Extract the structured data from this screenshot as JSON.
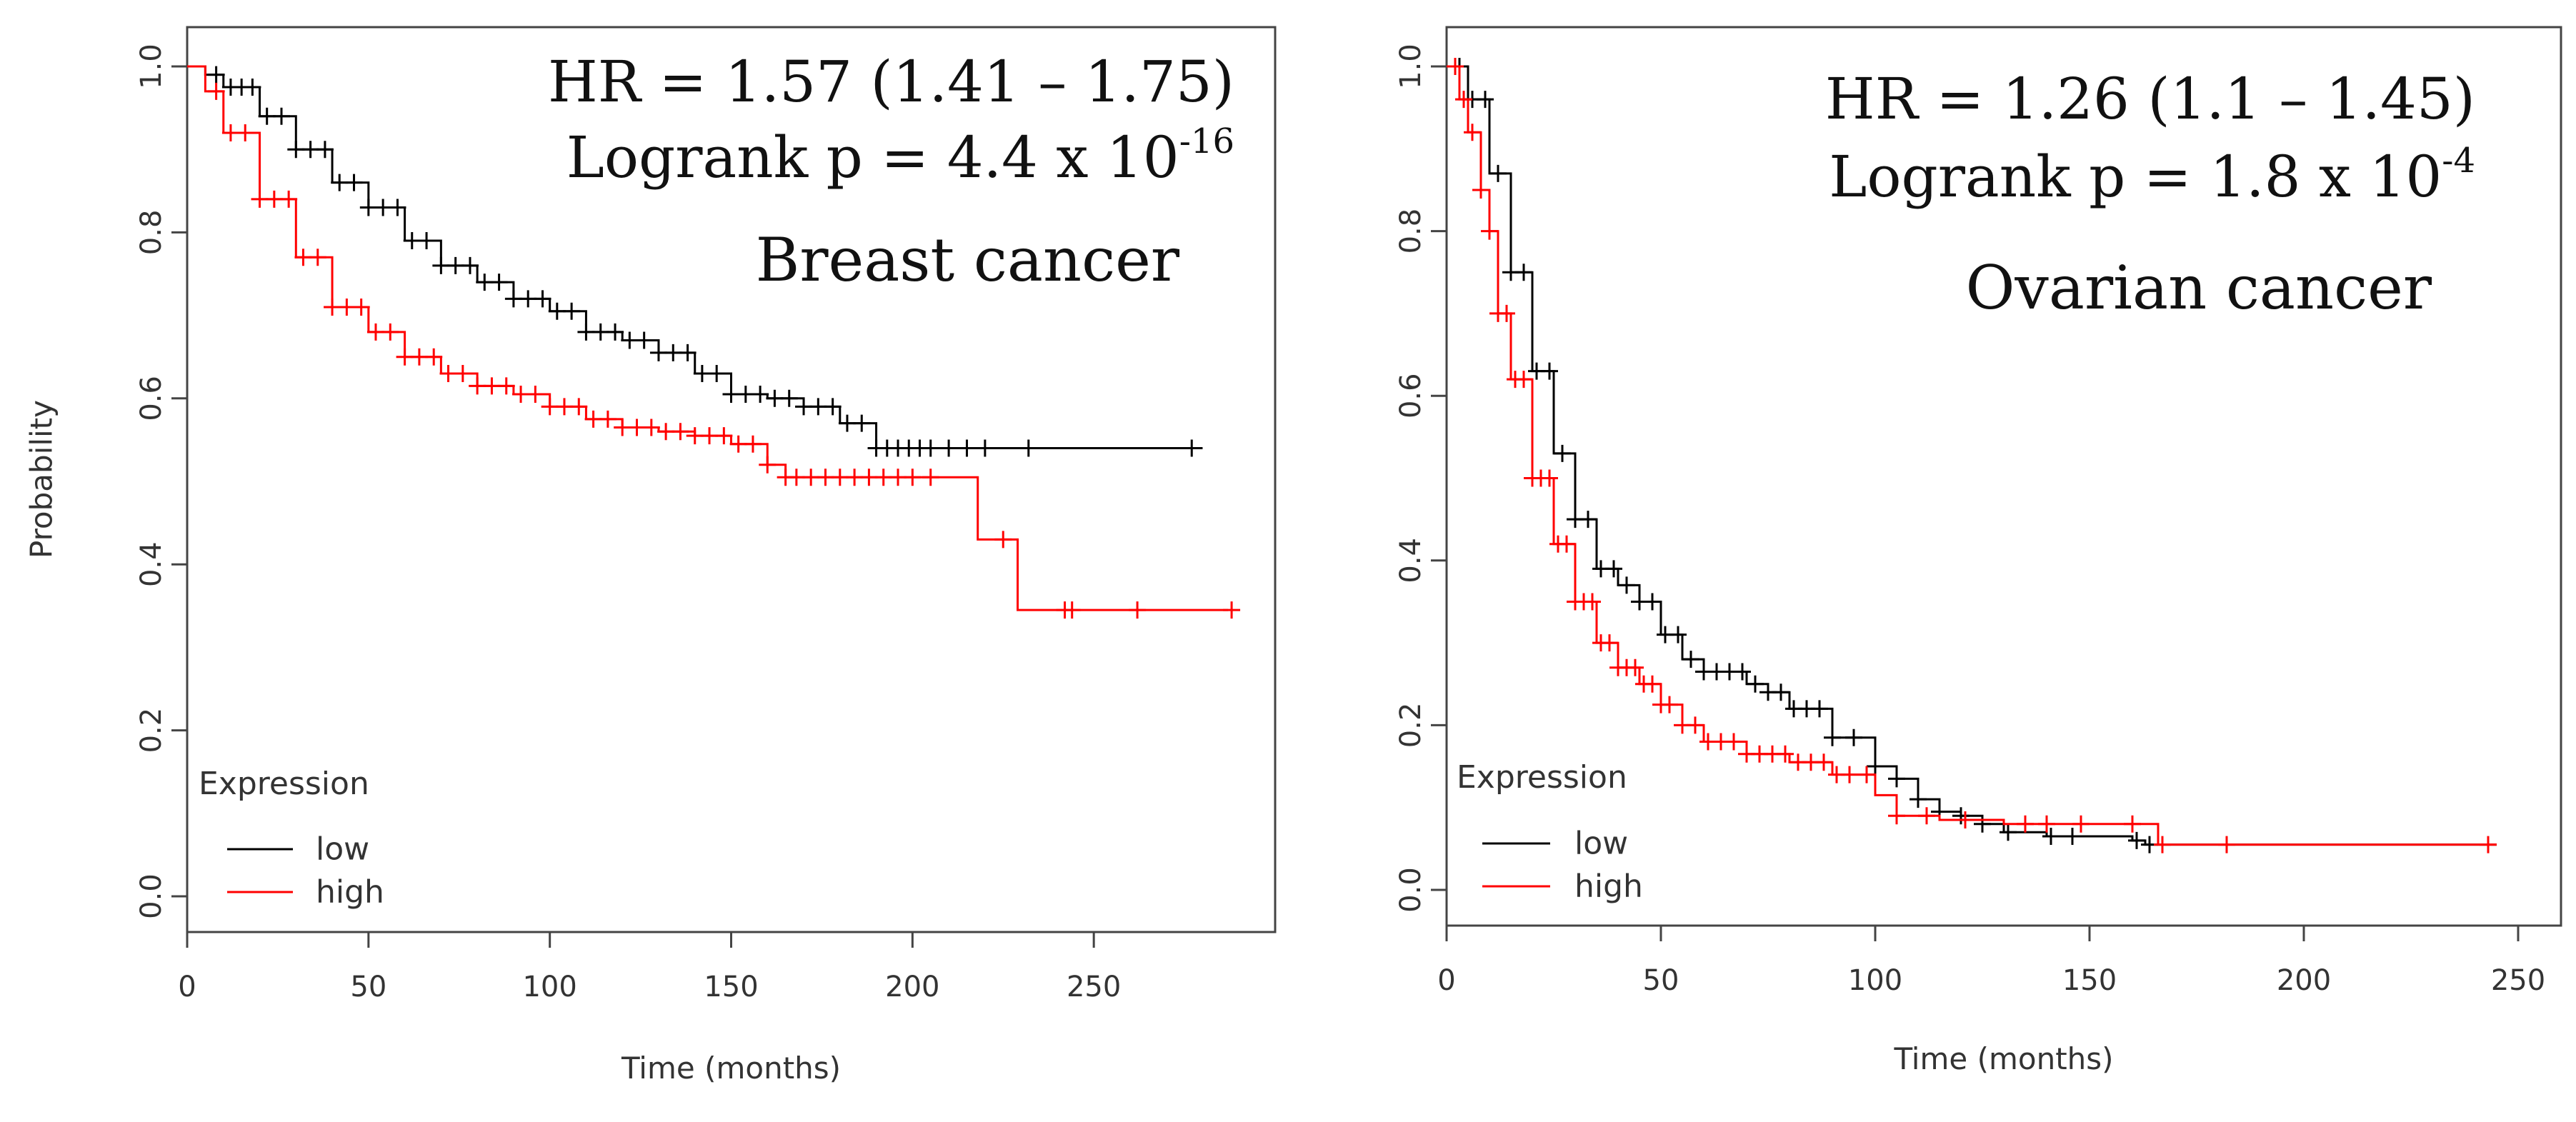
{
  "chart_data": [
    {
      "type": "line",
      "subtype": "kaplan-meier",
      "title": "Breast cancer",
      "xlabel": "Time (months)",
      "ylabel": "Probability",
      "xlim": [
        0,
        300
      ],
      "ylim": [
        0,
        1
      ],
      "x_ticks": [
        "0",
        "50",
        "100",
        "150",
        "200",
        "250"
      ],
      "y_ticks": [
        "0.0",
        "0.2",
        "0.4",
        "0.6",
        "0.8",
        "1.0"
      ],
      "annotation": {
        "hr": "HR = 1.57 (1.41 – 1.75)",
        "logrank_prefix": "Logrank p = 4.4 x 10",
        "logrank_exponent": "-16",
        "label": "Breast cancer"
      },
      "legend": {
        "title": "Expression",
        "position": "bottom-left",
        "entries": [
          {
            "label": "low",
            "color": "#000000"
          },
          {
            "label": "high",
            "color": "#ff0000"
          }
        ]
      },
      "series": [
        {
          "name": "low",
          "color": "#000000",
          "points": [
            [
              0,
              1.0
            ],
            [
              5,
              0.99
            ],
            [
              10,
              0.975
            ],
            [
              20,
              0.94
            ],
            [
              30,
              0.9
            ],
            [
              40,
              0.86
            ],
            [
              50,
              0.83
            ],
            [
              60,
              0.79
            ],
            [
              70,
              0.76
            ],
            [
              80,
              0.74
            ],
            [
              90,
              0.72
            ],
            [
              100,
              0.705
            ],
            [
              110,
              0.68
            ],
            [
              120,
              0.67
            ],
            [
              130,
              0.655
            ],
            [
              140,
              0.63
            ],
            [
              150,
              0.605
            ],
            [
              160,
              0.6
            ],
            [
              170,
              0.59
            ],
            [
              180,
              0.57
            ],
            [
              190,
              0.54
            ],
            [
              200,
              0.54
            ],
            [
              230,
              0.54
            ],
            [
              280,
              0.54
            ]
          ],
          "censor_x": [
            8,
            12,
            15,
            18,
            22,
            26,
            30,
            34,
            38,
            42,
            46,
            50,
            54,
            58,
            62,
            66,
            70,
            74,
            78,
            82,
            86,
            90,
            94,
            98,
            102,
            106,
            110,
            114,
            118,
            122,
            126,
            130,
            134,
            138,
            142,
            146,
            150,
            154,
            158,
            162,
            166,
            170,
            174,
            178,
            182,
            186,
            190,
            193,
            196,
            199,
            202,
            205,
            210,
            215,
            220,
            232,
            277
          ]
        },
        {
          "name": "high",
          "color": "#ff0000",
          "points": [
            [
              0,
              1.0
            ],
            [
              5,
              0.97
            ],
            [
              10,
              0.92
            ],
            [
              20,
              0.84
            ],
            [
              30,
              0.77
            ],
            [
              40,
              0.71
            ],
            [
              50,
              0.68
            ],
            [
              60,
              0.65
            ],
            [
              70,
              0.63
            ],
            [
              80,
              0.615
            ],
            [
              90,
              0.605
            ],
            [
              100,
              0.59
            ],
            [
              110,
              0.575
            ],
            [
              120,
              0.565
            ],
            [
              130,
              0.56
            ],
            [
              140,
              0.555
            ],
            [
              150,
              0.545
            ],
            [
              160,
              0.52
            ],
            [
              165,
              0.505
            ],
            [
              200,
              0.505
            ],
            [
              218,
              0.505
            ],
            [
              218,
              0.43
            ],
            [
              229,
              0.43
            ],
            [
              229,
              0.345
            ],
            [
              287,
              0.345
            ]
          ],
          "censor_x": [
            8,
            12,
            16,
            20,
            24,
            28,
            32,
            36,
            40,
            44,
            48,
            52,
            56,
            60,
            64,
            68,
            72,
            76,
            80,
            84,
            88,
            92,
            96,
            100,
            104,
            108,
            112,
            116,
            120,
            124,
            128,
            132,
            136,
            140,
            144,
            148,
            152,
            156,
            160,
            165,
            168,
            172,
            176,
            180,
            184,
            188,
            192,
            196,
            200,
            205,
            225,
            242,
            244,
            262,
            288
          ]
        }
      ]
    },
    {
      "type": "line",
      "subtype": "kaplan-meier",
      "title": "Ovarian cancer",
      "xlabel": "Time (months)",
      "ylabel": "",
      "xlim": [
        0,
        260
      ],
      "ylim": [
        0,
        1
      ],
      "x_ticks": [
        "0",
        "50",
        "100",
        "150",
        "200",
        "250"
      ],
      "y_ticks": [
        "0.0",
        "0.2",
        "0.4",
        "0.6",
        "0.8",
        "1.0"
      ],
      "annotation": {
        "hr": "HR = 1.26 (1.1 – 1.45)",
        "logrank_prefix": "Logrank p = 1.8 x 10",
        "logrank_exponent": "-4",
        "label": "Ovarian cancer"
      },
      "legend": {
        "title": "Expression",
        "position": "bottom-left",
        "entries": [
          {
            "label": "low",
            "color": "#000000"
          },
          {
            "label": "high",
            "color": "#ff0000"
          }
        ]
      },
      "series": [
        {
          "name": "low",
          "color": "#000000",
          "points": [
            [
              0,
              1.0
            ],
            [
              5,
              0.96
            ],
            [
              10,
              0.87
            ],
            [
              15,
              0.75
            ],
            [
              20,
              0.63
            ],
            [
              25,
              0.53
            ],
            [
              30,
              0.45
            ],
            [
              35,
              0.39
            ],
            [
              40,
              0.37
            ],
            [
              45,
              0.35
            ],
            [
              50,
              0.31
            ],
            [
              55,
              0.28
            ],
            [
              60,
              0.265
            ],
            [
              70,
              0.25
            ],
            [
              75,
              0.24
            ],
            [
              80,
              0.22
            ],
            [
              90,
              0.185
            ],
            [
              100,
              0.15
            ],
            [
              105,
              0.135
            ],
            [
              110,
              0.11
            ],
            [
              115,
              0.095
            ],
            [
              120,
              0.09
            ],
            [
              125,
              0.08
            ],
            [
              130,
              0.07
            ],
            [
              140,
              0.065
            ],
            [
              160,
              0.06
            ],
            [
              163,
              0.055
            ],
            [
              245,
              0.055
            ]
          ],
          "censor_x": [
            3,
            6,
            9,
            12,
            15,
            18,
            21,
            24,
            27,
            30,
            33,
            36,
            39,
            42,
            45,
            48,
            51,
            54,
            57,
            60,
            63,
            66,
            69,
            72,
            75,
            78,
            81,
            84,
            87,
            90,
            95,
            100,
            105,
            110,
            115,
            120,
            125,
            131,
            141,
            146,
            161,
            164
          ]
        },
        {
          "name": "high",
          "color": "#ff0000",
          "points": [
            [
              0,
              1.0
            ],
            [
              3,
              0.96
            ],
            [
              5,
              0.92
            ],
            [
              8,
              0.85
            ],
            [
              10,
              0.8
            ],
            [
              12,
              0.7
            ],
            [
              15,
              0.62
            ],
            [
              20,
              0.5
            ],
            [
              25,
              0.42
            ],
            [
              30,
              0.35
            ],
            [
              35,
              0.3
            ],
            [
              40,
              0.27
            ],
            [
              45,
              0.25
            ],
            [
              50,
              0.225
            ],
            [
              55,
              0.2
            ],
            [
              60,
              0.18
            ],
            [
              70,
              0.165
            ],
            [
              80,
              0.155
            ],
            [
              90,
              0.14
            ],
            [
              100,
              0.115
            ],
            [
              105,
              0.09
            ],
            [
              115,
              0.085
            ],
            [
              130,
              0.08
            ],
            [
              165,
              0.08
            ],
            [
              166,
              0.055
            ],
            [
              245,
              0.055
            ]
          ],
          "censor_x": [
            2,
            4,
            6,
            8,
            10,
            12,
            14,
            16,
            18,
            20,
            22,
            24,
            26,
            28,
            30,
            32,
            34,
            36,
            38,
            40,
            42,
            44,
            46,
            48,
            50,
            52,
            55,
            58,
            61,
            64,
            67,
            70,
            73,
            76,
            79,
            82,
            85,
            88,
            91,
            94,
            98,
            105,
            112,
            121,
            135,
            140,
            148,
            160,
            167,
            182,
            243
          ]
        }
      ]
    }
  ]
}
